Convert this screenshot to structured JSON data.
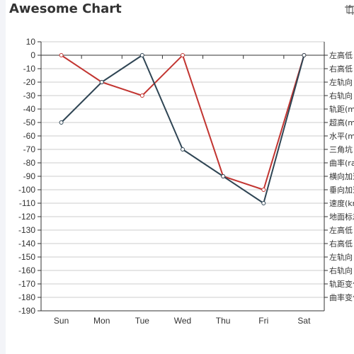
{
  "title": "Awesome Chart",
  "toolbox": [
    {
      "name": "crop-icon"
    },
    {
      "name": "restore-icon"
    }
  ],
  "chart_data": {
    "type": "line",
    "title": "Awesome Chart",
    "categories": [
      "Sun",
      "Mon",
      "Tue",
      "Wed",
      "Thu",
      "Fri",
      "Sat"
    ],
    "ylim": [
      -190,
      10
    ],
    "yticks": [
      10,
      0,
      -10,
      -20,
      -30,
      -40,
      -50,
      -60,
      -70,
      -80,
      -90,
      -100,
      -110,
      -120,
      -130,
      -140,
      -150,
      -160,
      -170,
      -180,
      -190
    ],
    "grid": true,
    "series": [
      {
        "color": "#c23531",
        "values": [
          0,
          -20,
          -30,
          0,
          -90,
          -100,
          0
        ]
      },
      {
        "color": "#2f4554",
        "values": [
          -50,
          -20,
          0,
          -70,
          -90,
          -110,
          0
        ]
      }
    ],
    "legend_position": "right",
    "legend": [
      "左高低",
      "右高低",
      "左轨向",
      "右轨向",
      "轨距(mm)",
      "超高(mm)",
      "水平(mm)",
      "三角坑",
      "曲率(rad)",
      "横向加速度",
      "垂向加速度",
      "速度(km/h)",
      "地面标志",
      "左高低",
      "右高低",
      "左轨向",
      "右轨向",
      "轨距变化率",
      "曲率变化率"
    ]
  }
}
